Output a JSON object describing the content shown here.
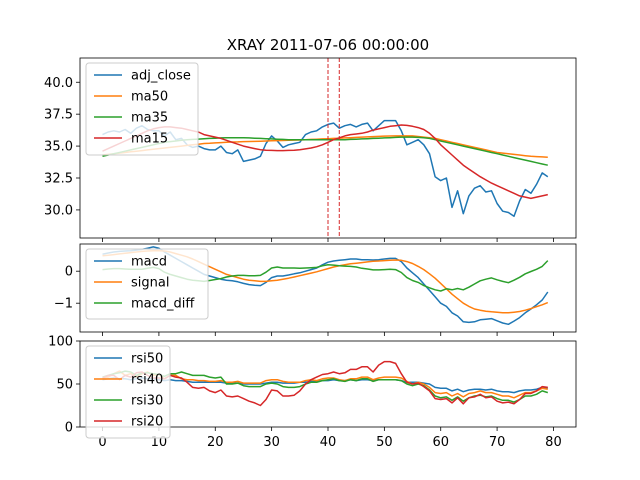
{
  "chart_data": [
    {
      "type": "line",
      "title": "XRAY 2011-07-06 00:00:00",
      "xlim": [
        -4,
        84
      ],
      "ylim": [
        27.8,
        41.9
      ],
      "yticks": [
        30.0,
        32.5,
        35.0,
        37.5,
        40.0
      ],
      "ytick_labels": [
        "30.0",
        "32.5",
        "35.0",
        "37.5",
        "40.0"
      ],
      "xticks": [
        0,
        10,
        20,
        30,
        40,
        50,
        60,
        70,
        80
      ],
      "vlines": [
        40,
        42
      ],
      "legend_position": "top-left",
      "series": [
        {
          "name": "adj_close",
          "color": "#1f77b4",
          "values": [
            35.9,
            36.1,
            36.2,
            36.1,
            36.3,
            36.0,
            36.4,
            36.6,
            36.3,
            36.2,
            36.2,
            35.8,
            36.1,
            35.5,
            35.6,
            35.1,
            34.9,
            35.0,
            34.8,
            34.7,
            34.7,
            35.0,
            34.5,
            34.4,
            34.7,
            33.8,
            33.9,
            34.0,
            34.2,
            35.2,
            35.8,
            35.4,
            34.9,
            35.1,
            35.2,
            35.3,
            35.9,
            36.1,
            36.2,
            36.5,
            36.7,
            36.8,
            36.4,
            36.6,
            36.7,
            36.5,
            36.7,
            36.8,
            36.2,
            36.6,
            37.0,
            37.0,
            37.0,
            36.2,
            35.1,
            35.3,
            35.5,
            35.1,
            34.4,
            32.6,
            32.3,
            32.5,
            30.2,
            31.5,
            29.7,
            31.1,
            31.7,
            31.9,
            31.4,
            31.5,
            30.5,
            29.9,
            29.8,
            29.5,
            30.7,
            31.6,
            31.3,
            32.0,
            32.9,
            32.6
          ]
        },
        {
          "name": "ma50",
          "color": "#ff7f0e",
          "values": [
            34.3,
            34.35,
            34.4,
            34.45,
            34.5,
            34.55,
            34.6,
            34.65,
            34.7,
            34.75,
            34.8,
            34.85,
            34.9,
            34.95,
            35.0,
            35.05,
            35.1,
            35.15,
            35.2,
            35.22,
            35.25,
            35.27,
            35.3,
            35.32,
            35.33,
            35.35,
            35.36,
            35.37,
            35.38,
            35.4,
            35.42,
            35.43,
            35.44,
            35.45,
            35.47,
            35.48,
            35.5,
            35.52,
            35.54,
            35.56,
            35.58,
            35.6,
            35.62,
            35.64,
            35.66,
            35.68,
            35.7,
            35.72,
            35.74,
            35.76,
            35.78,
            35.79,
            35.8,
            35.8,
            35.8,
            35.8,
            35.75,
            35.7,
            35.65,
            35.6,
            35.5,
            35.4,
            35.3,
            35.2,
            35.1,
            35.0,
            34.9,
            34.8,
            34.7,
            34.6,
            34.5,
            34.45,
            34.4,
            34.35,
            34.3,
            34.25,
            34.2,
            34.18,
            34.15,
            34.12
          ]
        },
        {
          "name": "ma35",
          "color": "#2ca02c",
          "values": [
            34.2,
            34.3,
            34.4,
            34.5,
            34.6,
            34.7,
            34.8,
            34.9,
            35.0,
            35.1,
            35.2,
            35.3,
            35.35,
            35.4,
            35.45,
            35.5,
            35.52,
            35.55,
            35.57,
            35.6,
            35.62,
            35.64,
            35.65,
            35.66,
            35.66,
            35.65,
            35.64,
            35.62,
            35.6,
            35.58,
            35.56,
            35.54,
            35.52,
            35.5,
            35.5,
            35.5,
            35.5,
            35.5,
            35.5,
            35.5,
            35.5,
            35.5,
            35.5,
            35.5,
            35.52,
            35.54,
            35.56,
            35.58,
            35.6,
            35.62,
            35.64,
            35.66,
            35.68,
            35.7,
            35.7,
            35.7,
            35.68,
            35.65,
            35.6,
            35.5,
            35.4,
            35.3,
            35.2,
            35.1,
            35.0,
            34.9,
            34.8,
            34.7,
            34.6,
            34.5,
            34.4,
            34.3,
            34.2,
            34.1,
            34.0,
            33.9,
            33.8,
            33.7,
            33.6,
            33.5
          ]
        },
        {
          "name": "ma15",
          "color": "#d62728",
          "values": [
            34.6,
            34.8,
            35.0,
            35.2,
            35.4,
            35.6,
            35.8,
            36.0,
            36.2,
            36.35,
            36.45,
            36.5,
            36.5,
            36.45,
            36.4,
            36.3,
            36.2,
            36.1,
            35.9,
            35.8,
            35.7,
            35.6,
            35.45,
            35.3,
            35.15,
            35.0,
            34.9,
            34.8,
            34.72,
            34.68,
            34.66,
            34.65,
            34.65,
            34.66,
            34.68,
            34.72,
            34.78,
            34.85,
            34.95,
            35.1,
            35.3,
            35.5,
            35.65,
            35.8,
            35.9,
            35.95,
            36.0,
            36.1,
            36.25,
            36.35,
            36.45,
            36.55,
            36.6,
            36.65,
            36.62,
            36.55,
            36.45,
            36.3,
            36.0,
            35.6,
            35.1,
            34.7,
            34.3,
            33.9,
            33.5,
            33.2,
            32.9,
            32.6,
            32.35,
            32.1,
            31.9,
            31.7,
            31.5,
            31.3,
            31.1,
            31.0,
            30.9,
            31.0,
            31.1,
            31.2
          ]
        }
      ]
    },
    {
      "type": "line",
      "xlim": [
        -4,
        84
      ],
      "ylim": [
        -1.9,
        0.85
      ],
      "yticks": [
        -1,
        0
      ],
      "ytick_labels": [
        "−1",
        "0"
      ],
      "xticks": [
        0,
        10,
        20,
        30,
        40,
        50,
        60,
        70,
        80
      ],
      "legend_position": "top-left",
      "series": [
        {
          "name": "macd",
          "color": "#1f77b4",
          "values": [
            0.53,
            0.57,
            0.6,
            0.62,
            0.63,
            0.64,
            0.66,
            0.68,
            0.72,
            0.76,
            0.72,
            0.6,
            0.5,
            0.4,
            0.3,
            0.2,
            0.1,
            0.0,
            -0.1,
            -0.15,
            -0.2,
            -0.25,
            -0.28,
            -0.3,
            -0.33,
            -0.38,
            -0.42,
            -0.44,
            -0.45,
            -0.35,
            -0.2,
            -0.15,
            -0.15,
            -0.12,
            -0.08,
            -0.05,
            0.0,
            0.05,
            0.1,
            0.2,
            0.28,
            0.32,
            0.34,
            0.36,
            0.38,
            0.38,
            0.36,
            0.36,
            0.35,
            0.36,
            0.38,
            0.4,
            0.4,
            0.3,
            0.1,
            -0.05,
            -0.2,
            -0.4,
            -0.6,
            -0.8,
            -1.0,
            -1.1,
            -1.3,
            -1.4,
            -1.58,
            -1.6,
            -1.58,
            -1.52,
            -1.5,
            -1.48,
            -1.55,
            -1.62,
            -1.66,
            -1.56,
            -1.45,
            -1.3,
            -1.18,
            -1.05,
            -0.9,
            -0.65
          ]
        },
        {
          "name": "signal",
          "color": "#ff7f0e",
          "values": [
            0.48,
            0.5,
            0.52,
            0.54,
            0.56,
            0.58,
            0.6,
            0.62,
            0.63,
            0.64,
            0.64,
            0.63,
            0.6,
            0.55,
            0.5,
            0.45,
            0.38,
            0.3,
            0.22,
            0.14,
            0.06,
            -0.02,
            -0.1,
            -0.15,
            -0.2,
            -0.25,
            -0.28,
            -0.3,
            -0.32,
            -0.32,
            -0.3,
            -0.28,
            -0.25,
            -0.22,
            -0.18,
            -0.14,
            -0.1,
            -0.06,
            -0.02,
            0.03,
            0.08,
            0.13,
            0.17,
            0.2,
            0.23,
            0.25,
            0.27,
            0.29,
            0.31,
            0.32,
            0.33,
            0.34,
            0.35,
            0.34,
            0.3,
            0.24,
            0.15,
            0.05,
            -0.08,
            -0.22,
            -0.38,
            -0.55,
            -0.72,
            -0.86,
            -1.0,
            -1.1,
            -1.18,
            -1.22,
            -1.25,
            -1.27,
            -1.28,
            -1.3,
            -1.3,
            -1.28,
            -1.26,
            -1.22,
            -1.17,
            -1.11,
            -1.05,
            -0.98
          ]
        },
        {
          "name": "macd_diff",
          "color": "#2ca02c",
          "values": [
            0.05,
            0.07,
            0.08,
            0.08,
            0.07,
            0.06,
            0.06,
            0.06,
            0.09,
            0.12,
            0.08,
            -0.03,
            -0.1,
            -0.15,
            -0.2,
            -0.25,
            -0.28,
            -0.3,
            -0.32,
            -0.29,
            -0.26,
            -0.23,
            -0.18,
            -0.15,
            -0.13,
            -0.13,
            -0.14,
            -0.14,
            -0.13,
            -0.03,
            0.1,
            0.13,
            0.1,
            0.1,
            0.1,
            0.09,
            0.1,
            0.11,
            0.12,
            0.17,
            0.2,
            0.19,
            0.17,
            0.16,
            0.15,
            0.13,
            0.09,
            0.07,
            0.04,
            0.04,
            0.05,
            0.06,
            0.05,
            -0.04,
            -0.2,
            -0.29,
            -0.35,
            -0.45,
            -0.52,
            -0.58,
            -0.62,
            -0.55,
            -0.58,
            -0.54,
            -0.58,
            -0.5,
            -0.4,
            -0.3,
            -0.25,
            -0.21,
            -0.27,
            -0.32,
            -0.36,
            -0.28,
            -0.19,
            -0.08,
            -0.01,
            0.06,
            0.15,
            0.33
          ]
        }
      ]
    },
    {
      "type": "line",
      "xlim": [
        -4,
        84
      ],
      "ylim": [
        0,
        100
      ],
      "yticks": [
        0,
        50,
        100
      ],
      "ytick_labels": [
        "0",
        "50",
        "100"
      ],
      "xticks": [
        0,
        10,
        20,
        30,
        40,
        50,
        60,
        70,
        80
      ],
      "xtick_labels": [
        "0",
        "10",
        "20",
        "30",
        "40",
        "50",
        "60",
        "70",
        "80"
      ],
      "legend_position": "top-left",
      "series": [
        {
          "name": "rsi50",
          "color": "#1f77b4",
          "values": [
            55,
            56,
            57,
            56,
            56,
            55,
            56,
            57,
            56,
            56,
            55,
            54,
            55,
            54,
            54,
            53,
            52,
            52,
            52,
            52,
            52,
            52,
            51,
            51,
            51,
            50,
            50,
            50,
            50,
            51,
            52,
            52,
            51,
            51,
            51,
            52,
            52,
            53,
            53,
            54,
            54,
            55,
            54,
            54,
            55,
            54,
            55,
            55,
            54,
            55,
            55,
            55,
            55,
            54,
            52,
            52,
            52,
            51,
            50,
            46,
            45,
            45,
            42,
            44,
            41,
            43,
            44,
            44,
            43,
            44,
            42,
            41,
            41,
            40,
            42,
            43,
            43,
            44,
            46,
            45
          ]
        },
        {
          "name": "rsi40",
          "color": "#ff7f0e",
          "values": [
            56,
            58,
            62,
            65,
            60,
            62,
            58,
            62,
            64,
            60,
            61,
            56,
            60,
            60,
            56,
            55,
            55,
            54,
            54,
            53,
            53,
            54,
            52,
            52,
            53,
            51,
            51,
            51,
            51,
            54,
            55,
            55,
            53,
            52,
            52,
            52,
            54,
            55,
            54,
            56,
            57,
            57,
            55,
            54,
            56,
            56,
            58,
            58,
            55,
            57,
            58,
            58,
            58,
            57,
            53,
            50,
            52,
            50,
            46,
            40,
            39,
            40,
            36,
            39,
            35,
            39,
            40,
            42,
            40,
            40,
            38,
            36,
            36,
            34,
            37,
            40,
            40,
            42,
            45,
            44
          ]
        },
        {
          "name": "rsi30",
          "color": "#2ca02c",
          "values": [
            58,
            60,
            62,
            63,
            65,
            64,
            60,
            63,
            63,
            62,
            61,
            59,
            62,
            62,
            64,
            62,
            60,
            60,
            60,
            58,
            57,
            58,
            50,
            50,
            51,
            48,
            47,
            47,
            47,
            50,
            51,
            50,
            47,
            46,
            46,
            47,
            50,
            52,
            52,
            54,
            55,
            56,
            54,
            53,
            55,
            54,
            56,
            56,
            53,
            55,
            55,
            55,
            55,
            54,
            50,
            48,
            50,
            48,
            43,
            36,
            34,
            35,
            31,
            35,
            30,
            34,
            36,
            37,
            35,
            36,
            33,
            31,
            31,
            29,
            32,
            36,
            36,
            38,
            42,
            40
          ]
        },
        {
          "name": "rsi20",
          "color": "#d62728",
          "values": [
            57,
            60,
            60,
            55,
            60,
            58,
            63,
            64,
            60,
            57,
            57,
            56,
            60,
            58,
            57,
            52,
            46,
            45,
            46,
            42,
            40,
            43,
            36,
            35,
            36,
            33,
            30,
            28,
            25,
            32,
            43,
            42,
            36,
            36,
            37,
            42,
            50,
            55,
            58,
            61,
            62,
            64,
            62,
            63,
            67,
            67,
            70,
            70,
            64,
            72,
            76,
            76,
            74,
            62,
            52,
            50,
            51,
            47,
            42,
            33,
            32,
            33,
            28,
            34,
            27,
            34,
            35,
            38,
            34,
            35,
            30,
            28,
            29,
            27,
            32,
            39,
            39,
            42,
            47,
            46
          ]
        }
      ]
    }
  ]
}
